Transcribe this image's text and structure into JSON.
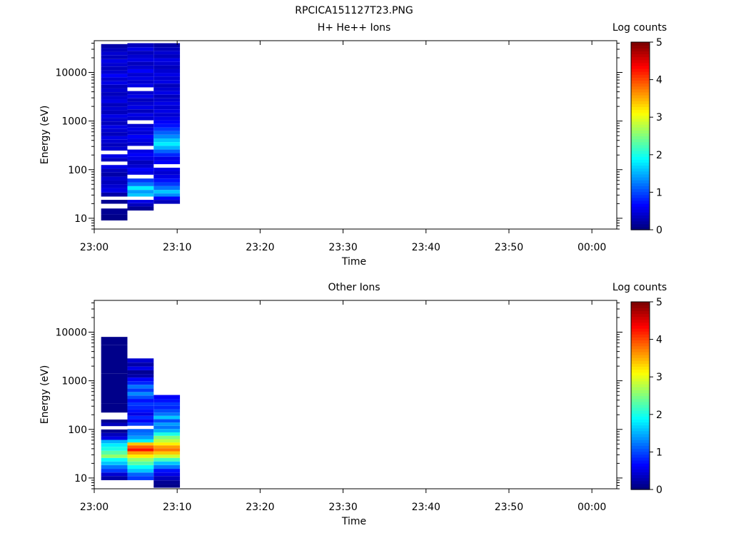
{
  "figure": {
    "title": "RPCICA151127T23.PNG"
  },
  "chart_data": [
    {
      "type": "heatmap",
      "title": "H+ He++ Ions",
      "xlabel": "Time",
      "ylabel": "Energy (eV)",
      "x_ticks": [
        "23:00",
        "23:10",
        "23:20",
        "23:30",
        "23:40",
        "23:50",
        "00:00"
      ],
      "x_range": [
        "23:00",
        "00:03"
      ],
      "y_scale": "log",
      "y_ticks": [
        10,
        100,
        1000,
        10000
      ],
      "y_tick_labels": [
        "10",
        "100",
        "1000",
        "10000"
      ],
      "ylim": [
        6,
        45000
      ],
      "colorbar": {
        "label": "Log counts",
        "ticks": [
          "0",
          "1",
          "2",
          "3",
          "4",
          "5"
        ],
        "range": [
          0,
          5
        ]
      },
      "columns": [
        {
          "start": "23:00:50",
          "end": "23:04:00",
          "cells": [
            [
              10,
              0.05
            ],
            [
              14,
              0.1
            ],
            [
              18,
              null
            ],
            [
              22,
              0.1
            ],
            [
              26,
              null
            ],
            [
              30,
              0.2
            ],
            [
              38,
              0.5
            ],
            [
              46,
              0.4
            ],
            [
              55,
              0.3
            ],
            [
              65,
              0.4
            ],
            [
              80,
              0.2
            ],
            [
              95,
              0.3
            ],
            [
              115,
              0.5
            ],
            [
              135,
              null
            ],
            [
              160,
              0.3
            ],
            [
              190,
              0.5
            ],
            [
              225,
              null
            ],
            [
              270,
              0.4
            ],
            [
              320,
              0.3
            ],
            [
              380,
              0.4
            ],
            [
              450,
              0.5
            ],
            [
              540,
              0.3
            ],
            [
              640,
              0.4
            ],
            [
              760,
              0.5
            ],
            [
              900,
              0.3
            ],
            [
              1070,
              0.4
            ],
            [
              1270,
              0.5
            ],
            [
              1500,
              0.3
            ],
            [
              1800,
              0.4
            ],
            [
              2150,
              0.3
            ],
            [
              2550,
              0.5
            ],
            [
              3000,
              0.4
            ],
            [
              3600,
              0.3
            ],
            [
              4300,
              0.4
            ],
            [
              5100,
              0.3
            ],
            [
              6100,
              0.5
            ],
            [
              7200,
              0.4
            ],
            [
              8600,
              0.6
            ],
            [
              10200,
              0.4
            ],
            [
              12100,
              0.3
            ],
            [
              14400,
              0.4
            ],
            [
              17200,
              0.5
            ],
            [
              20500,
              0.3
            ],
            [
              24400,
              0.4
            ],
            [
              29000,
              0.3
            ],
            [
              34500,
              0.2
            ]
          ]
        },
        {
          "start": "23:04:00",
          "end": "23:07:10",
          "cells": [
            [
              16,
              0.1
            ],
            [
              19,
              0.3
            ],
            [
              22,
              0.5
            ],
            [
              26,
              null
            ],
            [
              30,
              1.6
            ],
            [
              35,
              1.4
            ],
            [
              42,
              1.8
            ],
            [
              50,
              1.2
            ],
            [
              60,
              0.9
            ],
            [
              72,
              null
            ],
            [
              86,
              0.5
            ],
            [
              100,
              0.6
            ],
            [
              120,
              0.4
            ],
            [
              140,
              0.3
            ],
            [
              170,
              0.5
            ],
            [
              200,
              0.6
            ],
            [
              240,
              0.5
            ],
            [
              280,
              null
            ],
            [
              340,
              0.4
            ],
            [
              400,
              0.5
            ],
            [
              480,
              0.6
            ],
            [
              570,
              0.4
            ],
            [
              680,
              0.5
            ],
            [
              800,
              0.4
            ],
            [
              950,
              null
            ],
            [
              1130,
              0.4
            ],
            [
              1350,
              0.5
            ],
            [
              1600,
              0.3
            ],
            [
              1900,
              0.5
            ],
            [
              2300,
              0.4
            ],
            [
              2700,
              0.3
            ],
            [
              3200,
              0.5
            ],
            [
              3800,
              0.4
            ],
            [
              4500,
              null
            ],
            [
              5400,
              0.5
            ],
            [
              6400,
              0.4
            ],
            [
              7600,
              0.5
            ],
            [
              9000,
              0.4
            ],
            [
              10700,
              0.6
            ],
            [
              12700,
              0.4
            ],
            [
              15100,
              0.3
            ],
            [
              18000,
              0.5
            ],
            [
              21400,
              0.4
            ],
            [
              25400,
              0.3
            ],
            [
              30200,
              0.5
            ],
            [
              36000,
              0.3
            ]
          ]
        },
        {
          "start": "23:07:10",
          "end": "23:10:20",
          "cells": [
            [
              22,
              0.3
            ],
            [
              26,
              0.6
            ],
            [
              30,
              1.3
            ],
            [
              35,
              1.6
            ],
            [
              42,
              1.2
            ],
            [
              50,
              0.9
            ],
            [
              60,
              0.7
            ],
            [
              72,
              0.5
            ],
            [
              86,
              0.4
            ],
            [
              100,
              0.5
            ],
            [
              120,
              null
            ],
            [
              140,
              0.6
            ],
            [
              170,
              0.5
            ],
            [
              200,
              0.8
            ],
            [
              240,
              1.1
            ],
            [
              280,
              1.5
            ],
            [
              340,
              1.8
            ],
            [
              400,
              1.6
            ],
            [
              480,
              1.3
            ],
            [
              570,
              1.1
            ],
            [
              680,
              0.9
            ],
            [
              800,
              0.7
            ],
            [
              950,
              0.6
            ],
            [
              1130,
              0.5
            ],
            [
              1350,
              0.4
            ],
            [
              1600,
              0.5
            ],
            [
              1900,
              0.4
            ],
            [
              2300,
              0.5
            ],
            [
              2700,
              0.4
            ],
            [
              3200,
              0.3
            ],
            [
              3800,
              0.5
            ],
            [
              4500,
              0.4
            ],
            [
              5400,
              0.3
            ],
            [
              6400,
              0.5
            ],
            [
              7600,
              0.4
            ],
            [
              9000,
              0.5
            ],
            [
              10700,
              0.4
            ],
            [
              12700,
              0.3
            ],
            [
              15100,
              0.4
            ],
            [
              18000,
              0.5
            ],
            [
              21400,
              0.3
            ],
            [
              25400,
              0.4
            ],
            [
              30200,
              0.3
            ],
            [
              36000,
              0.2
            ]
          ]
        }
      ]
    },
    {
      "type": "heatmap",
      "title": "Other Ions",
      "xlabel": "Time",
      "ylabel": "Energy (eV)",
      "x_ticks": [
        "23:00",
        "23:10",
        "23:20",
        "23:30",
        "23:40",
        "23:50",
        "00:00"
      ],
      "x_range": [
        "23:00",
        "00:03"
      ],
      "y_scale": "log",
      "y_ticks": [
        10,
        100,
        1000,
        10000
      ],
      "y_tick_labels": [
        "10",
        "100",
        "1000",
        "10000"
      ],
      "ylim": [
        6,
        45000
      ],
      "colorbar": {
        "label": "Log counts",
        "ticks": [
          "0",
          "1",
          "2",
          "3",
          "4",
          "5"
        ],
        "range": [
          0,
          5
        ]
      },
      "columns": [
        {
          "start": "23:00:50",
          "end": "23:04:00",
          "cells": [
            [
              10,
              0.2
            ],
            [
              12,
              0.4
            ],
            [
              14,
              0.9
            ],
            [
              17,
              1.2
            ],
            [
              20,
              1.6
            ],
            [
              24,
              1.9
            ],
            [
              28,
              2.6
            ],
            [
              33,
              2.3
            ],
            [
              40,
              2.0
            ],
            [
              48,
              1.8
            ],
            [
              56,
              1.5
            ],
            [
              66,
              0.5
            ],
            [
              78,
              0.3
            ],
            [
              92,
              0.1
            ],
            [
              108,
              null
            ],
            [
              126,
              0.3
            ],
            [
              148,
              0.1
            ],
            [
              172,
              null
            ],
            [
              205,
              null
            ],
            [
              240,
              0.05
            ],
            [
              480,
              0.05
            ],
            [
              4200,
              0.05
            ],
            [
              7200,
              0.05
            ]
          ]
        },
        {
          "start": "23:04:00",
          "end": "23:07:10",
          "cells": [
            [
              10,
              0.9
            ],
            [
              12,
              1.1
            ],
            [
              14,
              1.6
            ],
            [
              17,
              1.9
            ],
            [
              20,
              2.3
            ],
            [
              24,
              2.6
            ],
            [
              28,
              3.2
            ],
            [
              33,
              3.6
            ],
            [
              38,
              4.3
            ],
            [
              44,
              3.9
            ],
            [
              50,
              3.4
            ],
            [
              58,
              1.8
            ],
            [
              68,
              1.4
            ],
            [
              80,
              1.2
            ],
            [
              94,
              1.1
            ],
            [
              110,
              null
            ],
            [
              128,
              0.9
            ],
            [
              150,
              0.6
            ],
            [
              176,
              0.8
            ],
            [
              205,
              0.5
            ],
            [
              240,
              0.7
            ],
            [
              280,
              0.8
            ],
            [
              330,
              0.9
            ],
            [
              390,
              0.7
            ],
            [
              460,
              1.0
            ],
            [
              540,
              1.3
            ],
            [
              640,
              0.9
            ],
            [
              760,
              1.2
            ],
            [
              900,
              0.8
            ],
            [
              1070,
              0.6
            ],
            [
              1270,
              0.2
            ],
            [
              1500,
              0.1
            ],
            [
              1800,
              0.5
            ],
            [
              2150,
              0.2
            ],
            [
              2600,
              0.4
            ]
          ]
        },
        {
          "start": "23:07:10",
          "end": "23:10:20",
          "cells": [
            [
              7,
              0.05
            ],
            [
              8,
              0.1
            ],
            [
              10,
              0.3
            ],
            [
              12,
              0.5
            ],
            [
              14,
              0.7
            ],
            [
              17,
              1.2
            ],
            [
              20,
              1.6
            ],
            [
              24,
              2.2
            ],
            [
              28,
              2.9
            ],
            [
              33,
              3.4
            ],
            [
              38,
              3.8
            ],
            [
              44,
              3.6
            ],
            [
              50,
              3.2
            ],
            [
              58,
              2.8
            ],
            [
              68,
              2.5
            ],
            [
              80,
              2.0
            ],
            [
              94,
              1.5
            ],
            [
              110,
              1.2
            ],
            [
              128,
              1.4
            ],
            [
              150,
              1.0
            ],
            [
              176,
              1.6
            ],
            [
              205,
              1.2
            ],
            [
              240,
              1.0
            ],
            [
              280,
              0.8
            ],
            [
              330,
              0.9
            ],
            [
              390,
              0.7
            ],
            [
              460,
              0.6
            ]
          ]
        }
      ]
    }
  ]
}
